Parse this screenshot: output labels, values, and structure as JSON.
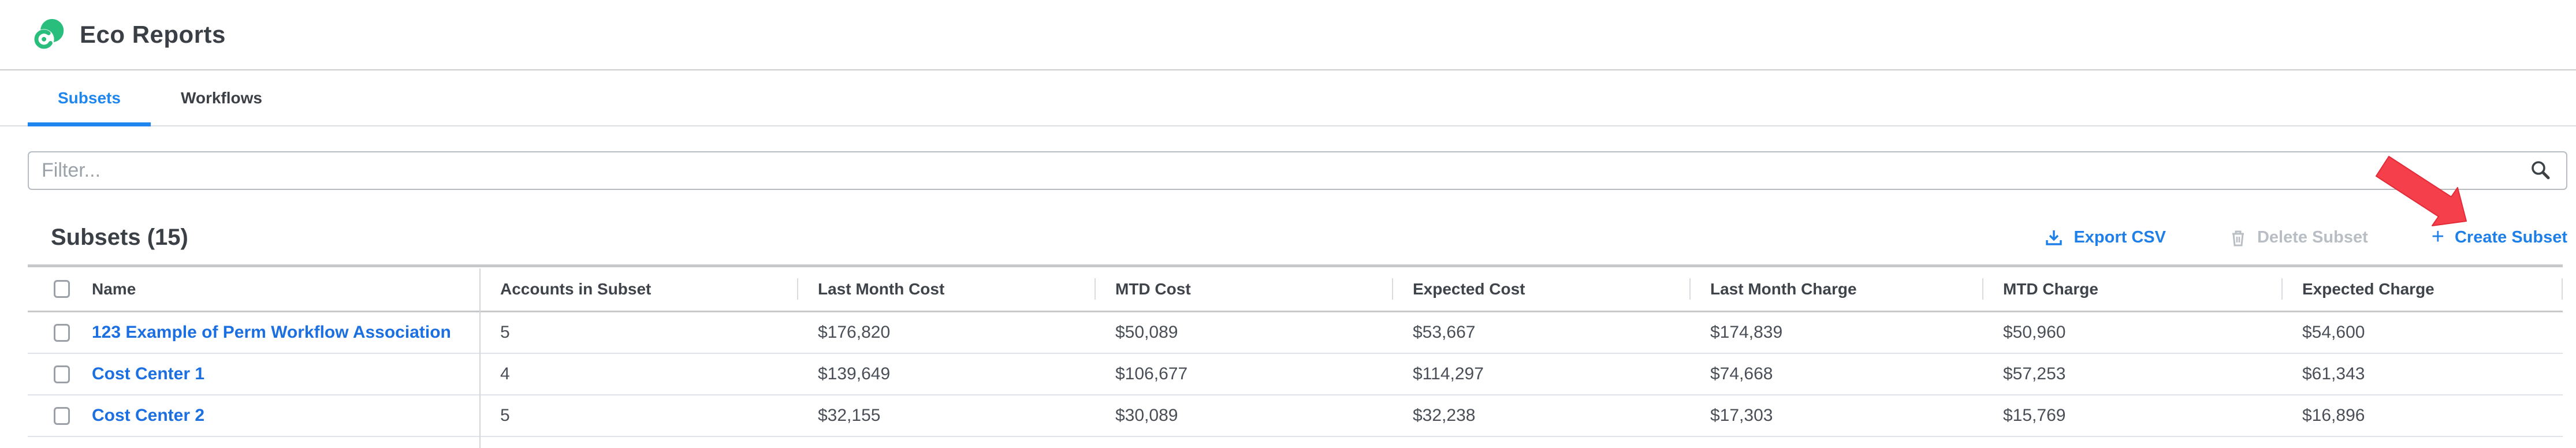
{
  "header": {
    "title": "Eco Reports"
  },
  "tabs": [
    {
      "label": "Subsets",
      "active": true
    },
    {
      "label": "Workflows",
      "active": false
    }
  ],
  "filter": {
    "placeholder": "Filter..."
  },
  "section": {
    "title": "Subsets (15)"
  },
  "toolbar": {
    "export_csv": "Export CSV",
    "delete_subset": "Delete Subset",
    "create_subset": "Create Subset",
    "create_plus": "+"
  },
  "colors": {
    "accent_blue": "#1e7fe9",
    "tab_blue": "#1f86f0",
    "link_blue": "#1b6fe0",
    "logo_green": "#2abe7d",
    "arrow_red": "#f5404b",
    "disabled_gray": "#b9bec4"
  },
  "table": {
    "columns": [
      "Name",
      "Accounts in Subset",
      "Last Month Cost",
      "MTD Cost",
      "Expected Cost",
      "Last Month Charge",
      "MTD Charge",
      "Expected Charge"
    ],
    "fields": [
      "accounts",
      "last_month_cost",
      "mtd_cost",
      "expected_cost",
      "last_month_charge",
      "mtd_charge",
      "expected_charge"
    ],
    "rows": [
      {
        "name": "123 Example of Perm Workflow Association",
        "accounts": "5",
        "last_month_cost": "$176,820",
        "mtd_cost": "$50,089",
        "expected_cost": "$53,667",
        "last_month_charge": "$174,839",
        "mtd_charge": "$50,960",
        "expected_charge": "$54,600"
      },
      {
        "name": "Cost Center 1",
        "accounts": "4",
        "last_month_cost": "$139,649",
        "mtd_cost": "$106,677",
        "expected_cost": "$114,297",
        "last_month_charge": "$74,668",
        "mtd_charge": "$57,253",
        "expected_charge": "$61,343"
      },
      {
        "name": "Cost Center 2",
        "accounts": "5",
        "last_month_cost": "$32,155",
        "mtd_cost": "$30,089",
        "expected_cost": "$32,238",
        "last_month_charge": "$17,303",
        "mtd_charge": "$15,769",
        "expected_charge": "$16,896"
      }
    ]
  }
}
